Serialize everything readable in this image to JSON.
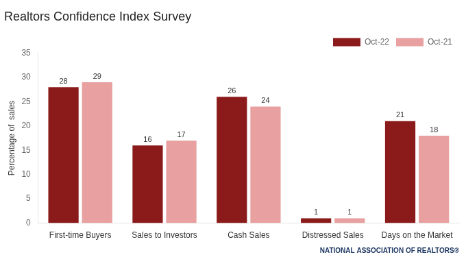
{
  "chart_data": {
    "type": "bar",
    "title": "Realtors Confidence Index Survey",
    "categories": [
      "First-time Buyers",
      "Sales to Investors",
      "Cash Sales",
      "Distressed Sales",
      "Days on the Market"
    ],
    "series": [
      {
        "name": "Oct-22",
        "color": "#8B1A1A",
        "values": [
          28,
          16,
          26,
          1,
          21
        ]
      },
      {
        "name": "Oct-21",
        "color": "#E8A0A0",
        "values": [
          29,
          17,
          24,
          1,
          18
        ]
      }
    ],
    "ylabel": "Percentage of  sales",
    "ylim": [
      0,
      35
    ],
    "yticks": [
      0,
      5,
      10,
      15,
      20,
      25,
      30,
      35
    ],
    "grid": false,
    "legend": "upper right",
    "data_labels": true,
    "annotations": [
      "NATIONAL ASSOCIATION OF REALTORS®"
    ]
  }
}
